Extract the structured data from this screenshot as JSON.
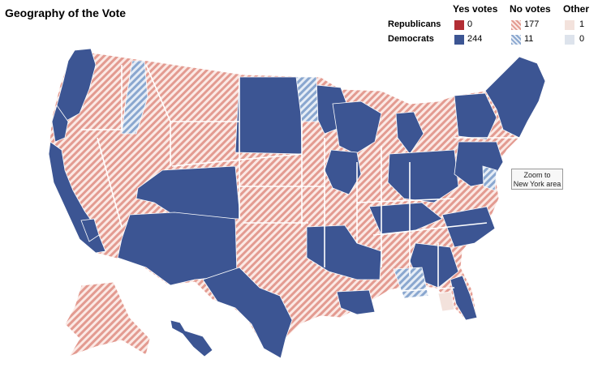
{
  "title": "Geography of the Vote",
  "legend": {
    "columns": [
      "Yes votes",
      "No votes",
      "Other"
    ],
    "rows": [
      {
        "label": "Republicans",
        "yes": "0",
        "no": "177",
        "other": "1"
      },
      {
        "label": "Democrats",
        "yes": "244",
        "no": "11",
        "other": "0"
      }
    ]
  },
  "zoom_button": {
    "line1": "Zoom to",
    "line2": "New York area"
  },
  "colors": {
    "rep_yes": "#b22d34",
    "dem_yes": "#3c5593",
    "rep_no_stripe": "#e39b91",
    "rep_no_bg": "#fbe9e5",
    "dem_no_stripe": "#8aa7cf",
    "dem_no_bg": "#e6edf6",
    "rep_other": "#f3e2dc",
    "dem_other": "#dde3ec"
  }
}
